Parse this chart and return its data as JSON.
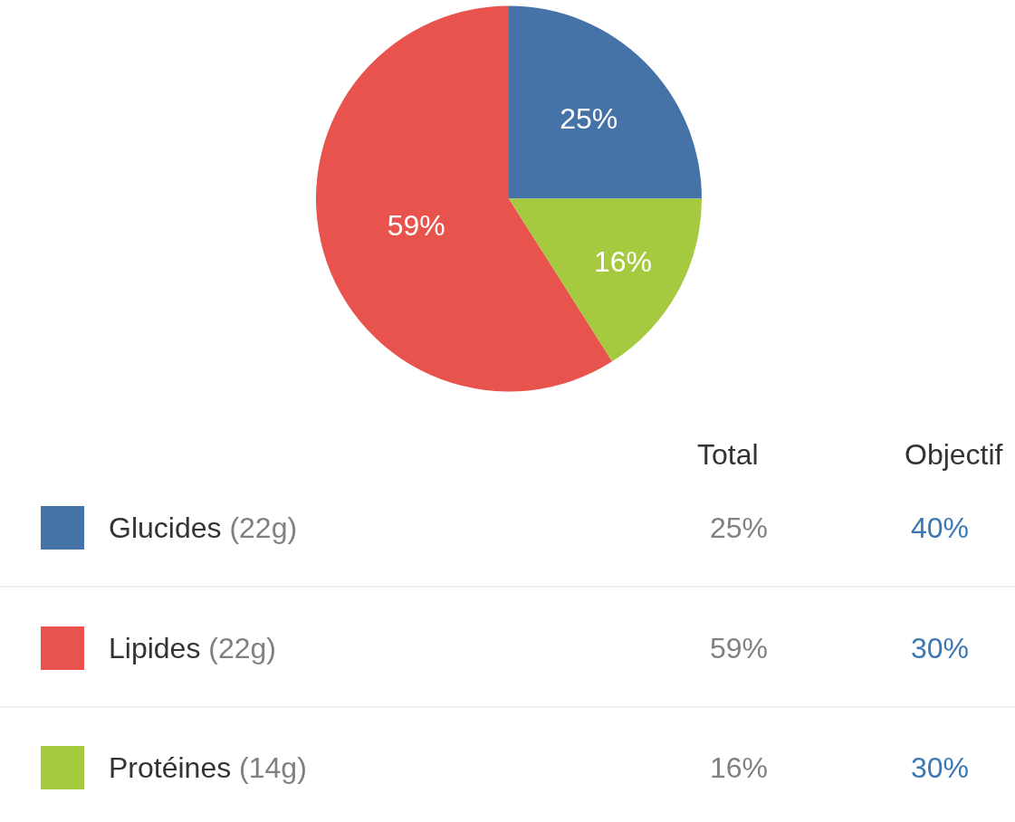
{
  "chart_data": {
    "type": "pie",
    "categories": [
      "Glucides",
      "Lipides",
      "Protéines"
    ],
    "values": [
      25,
      59,
      16
    ],
    "colors": [
      "#4572a7",
      "#e8534d",
      "#a5c93f"
    ],
    "value_labels": [
      "25%",
      "59%",
      "16%"
    ],
    "legend": "bottom",
    "annotations": [
      "Total",
      "Objectif",
      "(22g)",
      "40%",
      "(22g)",
      "30%",
      "(14g)",
      "30%"
    ]
  }
}
